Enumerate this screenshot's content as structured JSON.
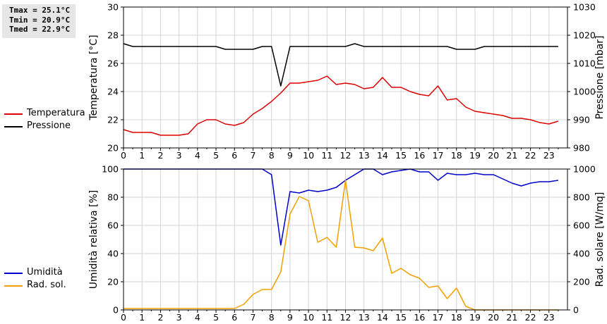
{
  "stats": {
    "tmax": "Tmax = 25.1°C",
    "tmin": "Tmin = 20.9°C",
    "tmed": "Tmed = 22.9°C"
  },
  "colors": {
    "temperature": "#dd0000",
    "pressure": "#000000",
    "humidity": "#0000c8",
    "radiation": "#f0a000",
    "grid": "#d4d4d4"
  },
  "legend_top": [
    {
      "label": "Temperatura",
      "color": "#dd0000"
    },
    {
      "label": "Pressione",
      "color": "#000000"
    }
  ],
  "legend_bottom": [
    {
      "label": "Umidità",
      "color": "#0000c8"
    },
    {
      "label": "Rad. sol.",
      "color": "#f0a000"
    }
  ],
  "chart_data": [
    {
      "type": "line",
      "xlim": [
        0,
        24
      ],
      "xticks": [
        "0",
        "1",
        "2",
        "3",
        "4",
        "5",
        "6",
        "7",
        "8",
        "9",
        "10",
        "11",
        "12",
        "13",
        "14",
        "15",
        "16",
        "17",
        "18",
        "19",
        "20",
        "21",
        "22",
        "23"
      ],
      "ylabel": "Temperatura [°C]",
      "ylim": [
        20,
        30
      ],
      "yticks": [
        "20",
        "22",
        "24",
        "26",
        "28",
        "30"
      ],
      "y2label": "Pressione [mbar]",
      "y2lim": [
        980,
        1030
      ],
      "y2ticks": [
        "980",
        "990",
        "1000",
        "1010",
        "1020",
        "1030"
      ],
      "grid": true,
      "series": [
        {
          "name": "Temperatura",
          "axis": "left",
          "color": "#dd0000",
          "x": [
            0,
            0.5,
            1,
            1.5,
            2,
            2.5,
            3,
            3.5,
            4,
            4.5,
            5,
            5.5,
            6,
            6.5,
            7,
            7.5,
            8,
            8.5,
            9,
            9.5,
            10,
            10.5,
            11,
            11.5,
            12,
            12.5,
            13,
            13.5,
            14,
            14.5,
            15,
            15.5,
            16,
            16.5,
            17,
            17.5,
            18,
            18.5,
            19,
            19.5,
            20,
            20.5,
            21,
            21.5,
            22,
            22.5,
            23,
            23.5
          ],
          "y": [
            21.3,
            21.1,
            21.1,
            21.1,
            20.9,
            20.9,
            20.9,
            21.0,
            21.7,
            22.0,
            22.0,
            21.7,
            21.6,
            21.8,
            22.4,
            22.8,
            23.3,
            23.9,
            24.6,
            24.6,
            24.7,
            24.8,
            25.1,
            24.5,
            24.6,
            24.5,
            24.2,
            24.3,
            25.0,
            24.3,
            24.3,
            24.0,
            23.8,
            23.7,
            24.4,
            23.4,
            23.5,
            22.9,
            22.6,
            22.5,
            22.4,
            22.3,
            22.1,
            22.1,
            22.0,
            21.8,
            21.7,
            21.9
          ]
        },
        {
          "name": "Pressione",
          "axis": "right",
          "color": "#000000",
          "x": [
            0,
            0.5,
            1,
            1.5,
            2,
            2.5,
            3,
            3.5,
            4,
            4.5,
            5,
            5.5,
            6,
            6.5,
            7,
            7.5,
            8,
            8.5,
            9,
            9.5,
            10,
            10.5,
            11,
            11.5,
            12,
            12.5,
            13,
            13.5,
            14,
            14.5,
            15,
            15.5,
            16,
            16.5,
            17,
            17.5,
            18,
            18.5,
            19,
            19.5,
            20,
            20.5,
            21,
            21.5,
            22,
            22.5,
            23,
            23.5
          ],
          "y": [
            1017,
            1016,
            1016,
            1016,
            1016,
            1016,
            1016,
            1016,
            1016,
            1016,
            1016,
            1015,
            1015,
            1015,
            1015,
            1016,
            1016,
            1002,
            1016,
            1016,
            1016,
            1016,
            1016,
            1016,
            1016,
            1017,
            1016,
            1016,
            1016,
            1016,
            1016,
            1016,
            1016,
            1016,
            1016,
            1016,
            1015,
            1015,
            1015,
            1016,
            1016,
            1016,
            1016,
            1016,
            1016,
            1016,
            1016,
            1016
          ]
        }
      ]
    },
    {
      "type": "line",
      "xlim": [
        0,
        24
      ],
      "xticks": [
        "0",
        "1",
        "2",
        "3",
        "4",
        "5",
        "6",
        "7",
        "8",
        "9",
        "10",
        "11",
        "12",
        "13",
        "14",
        "15",
        "16",
        "17",
        "18",
        "19",
        "20",
        "21",
        "22",
        "23"
      ],
      "ylabel": "Umidità relativa [%]",
      "ylim": [
        0,
        100
      ],
      "yticks": [
        "0",
        "20",
        "40",
        "60",
        "80",
        "100"
      ],
      "y2label": "Rad. solare [W/mq]",
      "y2lim": [
        0,
        1000
      ],
      "y2ticks": [
        "0",
        "200",
        "400",
        "600",
        "800",
        "1000"
      ],
      "grid": true,
      "series": [
        {
          "name": "Umidità",
          "axis": "left",
          "color": "#0000c8",
          "x": [
            0,
            0.5,
            1,
            1.5,
            2,
            2.5,
            3,
            3.5,
            4,
            4.5,
            5,
            5.5,
            6,
            6.5,
            7,
            7.5,
            8,
            8.5,
            9,
            9.5,
            10,
            10.5,
            11,
            11.5,
            12,
            12.5,
            13,
            13.5,
            14,
            14.5,
            15,
            15.5,
            16,
            16.5,
            17,
            17.5,
            18,
            18.5,
            19,
            19.5,
            20,
            20.5,
            21,
            21.5,
            22,
            22.5,
            23,
            23.5
          ],
          "y": [
            100,
            100,
            100,
            100,
            100,
            100,
            100,
            100,
            100,
            100,
            100,
            100,
            100,
            100,
            100,
            100,
            96,
            46,
            84,
            83,
            85,
            84,
            85,
            87,
            92,
            96,
            100,
            100,
            96,
            98,
            99,
            100,
            98,
            98,
            92,
            97,
            96,
            96,
            97,
            96,
            96,
            93,
            90,
            88,
            90,
            91,
            91,
            92
          ]
        },
        {
          "name": "Rad. sol.",
          "axis": "right",
          "color": "#f0a000",
          "x": [
            0,
            0.5,
            1,
            1.5,
            2,
            2.5,
            3,
            3.5,
            4,
            4.5,
            5,
            5.5,
            6,
            6.5,
            7,
            7.5,
            8,
            8.5,
            9,
            9.5,
            10,
            10.5,
            11,
            11.5,
            12,
            12.5,
            13,
            13.5,
            14,
            14.5,
            15,
            15.5,
            16,
            16.5,
            17,
            17.5,
            18,
            18.5,
            19,
            19.5,
            20,
            20.5,
            21,
            21.5,
            22,
            22.5,
            23,
            23.5
          ],
          "y": [
            10,
            10,
            10,
            10,
            10,
            10,
            10,
            10,
            10,
            10,
            10,
            10,
            10,
            40,
            110,
            145,
            145,
            270,
            680,
            805,
            775,
            480,
            515,
            445,
            920,
            445,
            440,
            420,
            510,
            260,
            295,
            250,
            225,
            160,
            170,
            80,
            155,
            25,
            0,
            0,
            0,
            0,
            0,
            0,
            0,
            0,
            0,
            0
          ]
        }
      ]
    }
  ]
}
